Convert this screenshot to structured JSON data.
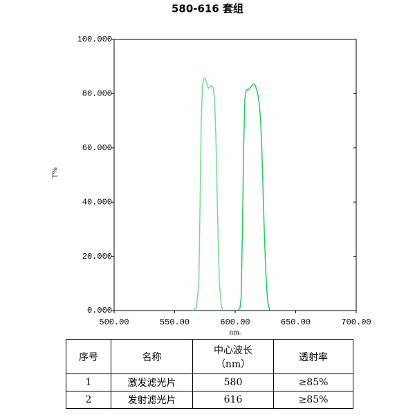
{
  "chart_data": {
    "type": "line",
    "title": "580-616 套组",
    "ylabel": "T%",
    "xlabel": "nm.",
    "xlim": [
      500,
      700
    ],
    "ylim": [
      0,
      100
    ],
    "grid": false,
    "xticks": [
      {
        "value": 500,
        "label": "500.00"
      },
      {
        "value": 550,
        "label": "550.00"
      },
      {
        "value": 600,
        "label": "600.00"
      },
      {
        "value": 650,
        "label": "650.00"
      },
      {
        "value": 700,
        "label": "700.00"
      }
    ],
    "yticks": [
      {
        "value": 0,
        "label": "0.000"
      },
      {
        "value": 20,
        "label": "20.000"
      },
      {
        "value": 40,
        "label": "40.000"
      },
      {
        "value": 60,
        "label": "60.000"
      },
      {
        "value": 80,
        "label": "80.000"
      },
      {
        "value": 100,
        "label": "100.000"
      }
    ],
    "series": [
      {
        "color": "#6ee08c",
        "x": [
          565,
          568,
          570,
          571,
          572,
          573,
          574,
          575,
          576,
          577,
          578,
          579,
          580,
          581,
          582,
          583,
          584,
          585,
          586,
          587,
          588,
          589,
          590
        ],
        "values": [
          0,
          1,
          10,
          40,
          70,
          83,
          85.5,
          85.8,
          84.5,
          83,
          82,
          82.5,
          83,
          82.8,
          82,
          78,
          65,
          45,
          25,
          10,
          4,
          1,
          0
        ]
      },
      {
        "color": "#22cc55",
        "x": [
          602,
          604,
          605,
          606,
          607,
          608,
          609,
          610,
          611,
          612,
          613,
          614,
          615,
          616,
          617,
          618,
          619,
          620,
          621,
          622,
          623,
          624,
          625,
          626,
          627,
          628,
          629
        ],
        "values": [
          0,
          1,
          5,
          30,
          60,
          78,
          81,
          81.5,
          81.5,
          82,
          82.5,
          83,
          83.5,
          83.5,
          82.5,
          81,
          79,
          76,
          70,
          60,
          45,
          30,
          18,
          8,
          3,
          1,
          0
        ]
      }
    ]
  },
  "table": {
    "header": [
      "序号",
      "名称",
      [
        "中心波长",
        "（nm）"
      ],
      "透射率"
    ],
    "rows": [
      [
        1,
        "激发滤光片",
        580,
        "≥85%"
      ],
      [
        2,
        "发射滤光片",
        616,
        "≥85%"
      ]
    ]
  }
}
